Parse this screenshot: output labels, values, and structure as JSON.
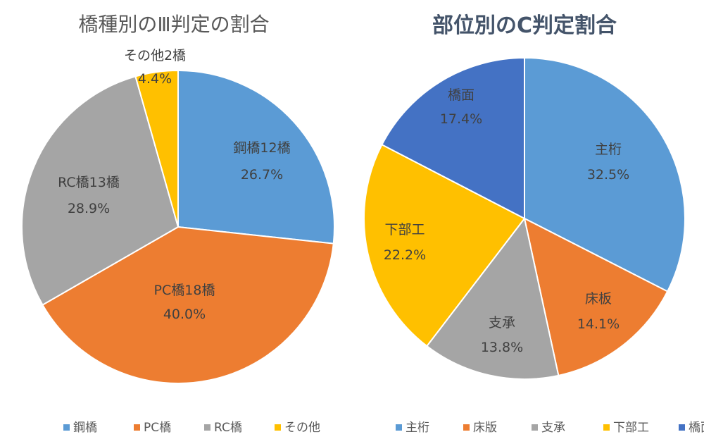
{
  "chart_data": [
    {
      "type": "pie",
      "title": "橋種別のⅢ判定の割合",
      "legend_position": "bottom",
      "slices": [
        {
          "label": "鋼橋12橋",
          "percent_label": "26.7%",
          "value": 26.7,
          "legend": "鋼橋",
          "color": "#5b9bd5"
        },
        {
          "label": "PC橋18橋",
          "percent_label": "40.0%",
          "value": 40.0,
          "legend": "PC橋",
          "color": "#ed7d31"
        },
        {
          "label": "RC橋13橋",
          "percent_label": "28.9%",
          "value": 28.9,
          "legend": "RC橋",
          "color": "#a5a5a5"
        },
        {
          "label": "その他2橋",
          "percent_label": "4.4%",
          "value": 4.4,
          "legend": "その他",
          "color": "#ffc000"
        }
      ]
    },
    {
      "type": "pie",
      "title": "部位別のC判定割合",
      "legend_position": "bottom",
      "slices": [
        {
          "label": "主桁",
          "percent_label": "32.5%",
          "value": 32.5,
          "legend": "主桁",
          "color": "#5b9bd5"
        },
        {
          "label": "床板",
          "percent_label": "14.1%",
          "value": 14.1,
          "legend": "床版",
          "color": "#ed7d31"
        },
        {
          "label": "支承",
          "percent_label": "13.8%",
          "value": 13.8,
          "legend": "支承",
          "color": "#a5a5a5"
        },
        {
          "label": "下部工",
          "percent_label": "22.2%",
          "value": 22.2,
          "legend": "下部工",
          "color": "#ffc000"
        },
        {
          "label": "橋面",
          "percent_label": "17.4%",
          "value": 17.4,
          "legend": "橋面",
          "color": "#4472c4"
        }
      ]
    }
  ]
}
